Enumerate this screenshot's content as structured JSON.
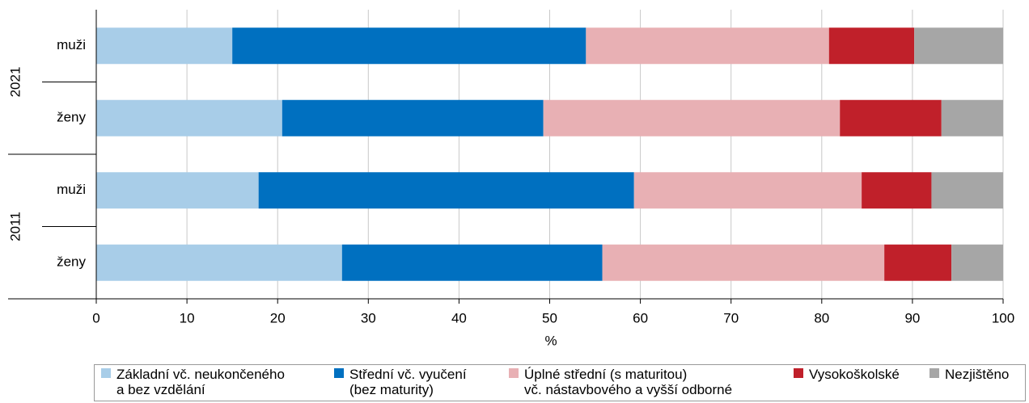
{
  "chart_data": {
    "type": "stacked_barh",
    "x_label": "%",
    "categories": [
      "muži",
      "ženy",
      "muži",
      "ženy"
    ],
    "groups": [
      "2021",
      "2011"
    ],
    "xlim": [
      0,
      100
    ],
    "xticks": [
      0,
      10,
      20,
      30,
      40,
      50,
      60,
      70,
      80,
      90,
      100
    ],
    "grid": true,
    "legend": "bottom",
    "series": [
      {
        "name": "Základní vč. neukončeného\na bez vzdělání",
        "color": "#a8cde8",
        "values": [
          15.0,
          20.5,
          17.9,
          27.1
        ]
      },
      {
        "name": "Střední vč. vyučení\n(bez maturity)",
        "color": "#0070c0",
        "values": [
          39.0,
          28.8,
          41.4,
          28.7
        ]
      },
      {
        "name": "Úplné střední (s maturitou)\nvč. nástavbového a vyšší odborné",
        "color": "#e8b0b4",
        "values": [
          26.8,
          32.7,
          25.1,
          31.1
        ]
      },
      {
        "name": "Vysokoškolské",
        "color": "#c0202a",
        "values": [
          9.4,
          11.2,
          7.7,
          7.4
        ]
      },
      {
        "name": "Nezjištěno",
        "color": "#a6a6a6",
        "values": [
          9.8,
          6.8,
          7.9,
          5.7
        ]
      }
    ]
  }
}
